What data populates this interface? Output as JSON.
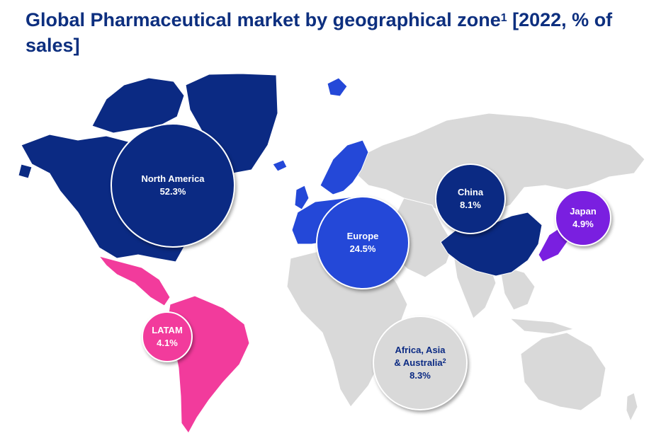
{
  "title": {
    "bold": "Global Pharmaceutical market by geographical zone",
    "bold_sup": "1",
    "rest": " [2022, % of sales]"
  },
  "colors": {
    "north_america": "#0b2a83",
    "europe": "#2448d8",
    "china": "#0b2a83",
    "japan": "#7a1fe0",
    "latam": "#f23b9c",
    "rest_of_world": "#d9d9d9",
    "title": "#0d2f7f"
  },
  "regions": [
    {
      "key": "north_america",
      "name": "North America",
      "name_sup": "",
      "value": "52.3%"
    },
    {
      "key": "europe",
      "name": "Europe",
      "name_sup": "",
      "value": "24.5%"
    },
    {
      "key": "china",
      "name": "China",
      "name_sup": "",
      "value": "8.1%"
    },
    {
      "key": "japan",
      "name": "Japan",
      "name_sup": "",
      "value": "4.9%"
    },
    {
      "key": "latam",
      "name": "LATAM",
      "name_sup": "",
      "value": "4.1%"
    },
    {
      "key": "africa_asia_australia",
      "name_line1": "Africa, Asia",
      "name_line2": "& Australia",
      "name_sup": "2",
      "value": "8.3%"
    }
  ]
}
